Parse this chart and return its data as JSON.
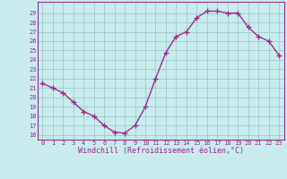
{
  "x": [
    0,
    1,
    2,
    3,
    4,
    5,
    6,
    7,
    8,
    9,
    10,
    11,
    12,
    13,
    14,
    15,
    16,
    17,
    18,
    19,
    20,
    21,
    22,
    23
  ],
  "y": [
    21.5,
    21.0,
    20.5,
    19.5,
    18.5,
    18.0,
    17.0,
    16.3,
    16.2,
    17.0,
    19.0,
    22.0,
    24.8,
    26.5,
    27.0,
    28.5,
    29.2,
    29.2,
    29.0,
    29.0,
    27.5,
    26.5,
    26.0,
    24.5
  ],
  "line_color": "#9b2d8e",
  "bg_color": "#c8ecec",
  "grid_color": "#a0cccc",
  "ylabel_ticks": [
    16,
    17,
    18,
    19,
    20,
    21,
    22,
    23,
    24,
    25,
    26,
    27,
    28,
    29
  ],
  "ylim": [
    15.5,
    30.2
  ],
  "xlim": [
    -0.5,
    23.5
  ],
  "xlabel": "Windchill (Refroidissement éolien,°C)",
  "xlabel_color": "#9b2d8e",
  "tick_color": "#9b2d8e",
  "spine_color": "#9b2d8e",
  "marker": "+",
  "markersize": 4,
  "linewidth": 1.0,
  "tick_fontsize": 5.0,
  "xlabel_fontsize": 6.0
}
